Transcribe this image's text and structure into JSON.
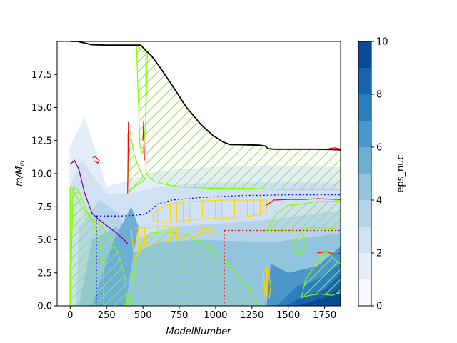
{
  "chart_data": {
    "type": "area",
    "title": "",
    "xlabel": "ModelNumber",
    "ylabel_main": "m/M",
    "ylabel_sub": "⊙",
    "xlim": [
      -90,
      1860
    ],
    "ylim": [
      0,
      20
    ],
    "x_ticks": [
      0,
      250,
      500,
      750,
      1000,
      1250,
      1500,
      1750
    ],
    "x_tick_labels": [
      "0",
      "250",
      "500",
      "750",
      "1000",
      "1250",
      "1500",
      "1750"
    ],
    "y_ticks": [
      0,
      2.5,
      5,
      7.5,
      10,
      12.5,
      15,
      17.5
    ],
    "y_tick_labels": [
      "0.0",
      "2.5",
      "5.0",
      "7.5",
      "10.0",
      "12.5",
      "15.0",
      "17.5"
    ],
    "colorbar": {
      "label": "eps_nuc",
      "range": [
        0,
        10
      ],
      "ticks": [
        0,
        2,
        4,
        6,
        8,
        10
      ],
      "tick_labels": [
        "0",
        "2",
        "4",
        "6",
        "8",
        "10"
      ],
      "levels": 10,
      "colors": [
        "#f7fbff",
        "#e3eef9",
        "#cfe1f2",
        "#b5d4e9",
        "#93c4de",
        "#6daed5",
        "#4b97c9",
        "#2f7ebc",
        "#1864aa",
        "#0a4a90"
      ]
    },
    "series": [
      {
        "kind": "total_mass",
        "color": "#000000",
        "x": [
          0,
          50,
          150,
          250,
          350,
          450,
          485,
          520,
          560,
          620,
          700,
          800,
          900,
          980,
          1050,
          1100,
          1200,
          1300,
          1340,
          1360,
          1400,
          1500,
          1600,
          1700,
          1800,
          1860
        ],
        "y": [
          20.0,
          20.0,
          19.75,
          19.72,
          19.72,
          19.72,
          19.72,
          19.3,
          18.9,
          18.0,
          16.7,
          15.0,
          13.7,
          12.9,
          12.4,
          12.2,
          12.18,
          12.15,
          12.1,
          11.9,
          11.85,
          11.85,
          11.85,
          11.85,
          11.82,
          11.8
        ]
      },
      {
        "kind": "convective_boundary_upper",
        "color": "#7fff00",
        "x": [
          520,
          580,
          650,
          750,
          850,
          950,
          1050,
          1150,
          1250,
          1350,
          1450,
          1550,
          1650,
          1750,
          1860
        ],
        "y": [
          10.0,
          9.4,
          9.2,
          9.0,
          8.95,
          8.9,
          8.9,
          8.9,
          8.88,
          8.85,
          8.8,
          8.8,
          8.8,
          8.8,
          8.8
        ]
      },
      {
        "kind": "he_core_boundary",
        "color": "#0000ff",
        "x": [
          180,
          250,
          350,
          450,
          520,
          560,
          600,
          700,
          800,
          900,
          1000,
          1100,
          1200,
          1300,
          1400,
          1500,
          1600,
          1700,
          1860
        ],
        "y": [
          6.8,
          6.8,
          6.8,
          6.85,
          6.95,
          7.3,
          7.7,
          8.0,
          8.1,
          8.2,
          8.25,
          8.3,
          8.35,
          8.35,
          8.38,
          8.4,
          8.4,
          8.4,
          8.4
        ]
      },
      {
        "kind": "co_core_boundary",
        "color": "#ff0000",
        "x": [
          1060,
          1150,
          1250,
          1350,
          1450,
          1550,
          1650,
          1750,
          1860
        ],
        "y": [
          5.7,
          5.7,
          5.7,
          5.7,
          5.7,
          5.7,
          5.7,
          5.7,
          5.7
        ]
      },
      {
        "kind": "mass_loss_boundary",
        "color": "#800080",
        "x": [
          0,
          30,
          60,
          100,
          150,
          200,
          260,
          320,
          370,
          395
        ],
        "y": [
          10.7,
          11.0,
          10.3,
          8.5,
          7.0,
          6.5,
          6.0,
          5.5,
          5.0,
          4.7
        ]
      }
    ]
  }
}
